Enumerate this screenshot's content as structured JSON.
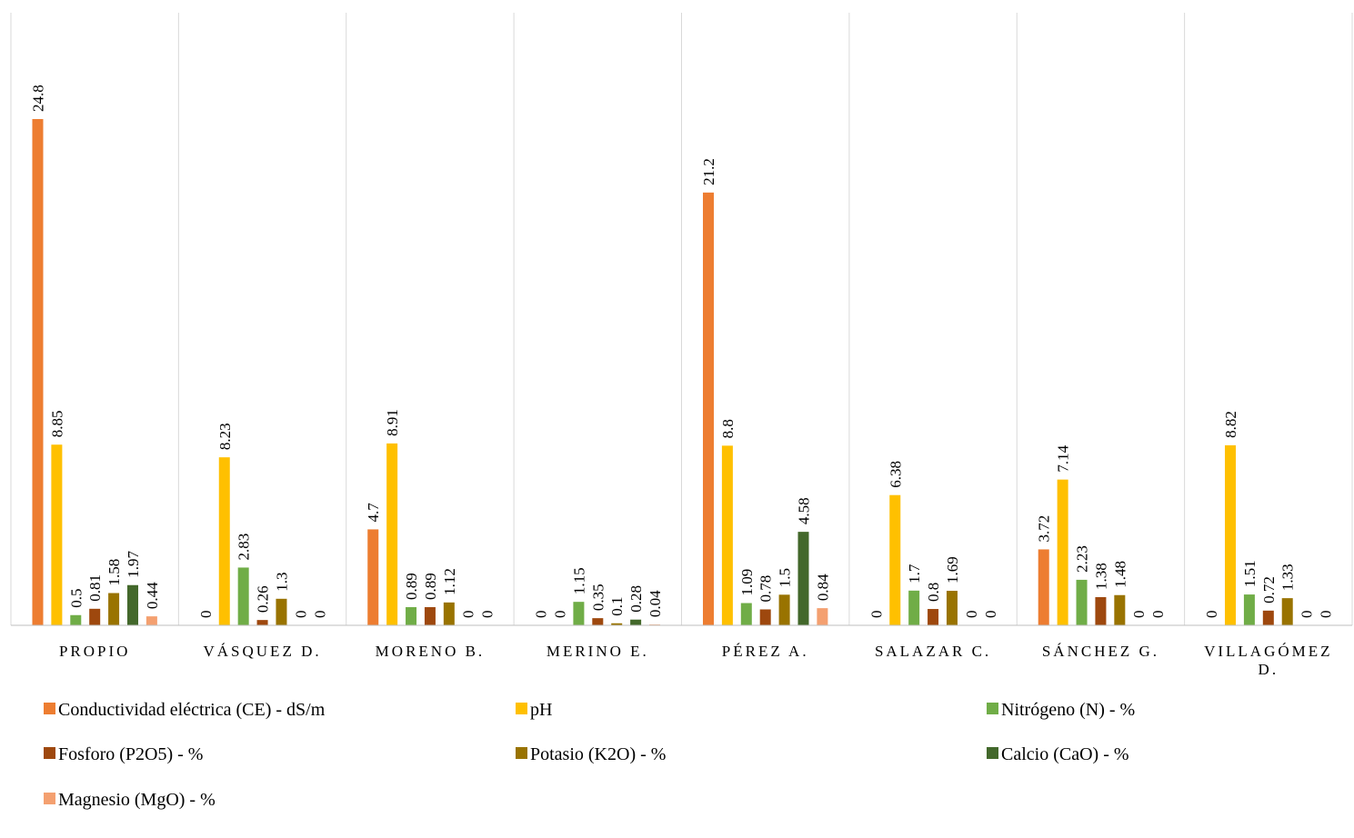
{
  "chart_data": {
    "type": "bar",
    "title": "",
    "xlabel": "",
    "ylabel": "",
    "ylim": [
      0,
      27
    ],
    "grid": false,
    "legend_position": "bottom",
    "categories": [
      [
        "PROPIO"
      ],
      [
        "VÁSQUEZ D."
      ],
      [
        "MORENO B."
      ],
      [
        "MERINO E."
      ],
      [
        "PÉREZ A."
      ],
      [
        "SALAZAR C."
      ],
      [
        "SÁNCHEZ G."
      ],
      [
        "VILLAGÓMEZ",
        "D."
      ]
    ],
    "series": [
      {
        "name": "Conductividad eléctrica (CE) - dS/m",
        "color": "#ED7D31",
        "values": [
          24.8,
          0,
          4.7,
          0,
          21.2,
          0,
          3.72,
          0
        ]
      },
      {
        "name": "pH",
        "color": "#FFC000",
        "values": [
          8.85,
          8.23,
          8.91,
          0,
          8.8,
          6.38,
          7.14,
          8.82
        ]
      },
      {
        "name": "Nitrógeno (N) - %",
        "color": "#70AD47",
        "values": [
          0.5,
          2.83,
          0.89,
          1.15,
          1.09,
          1.7,
          2.23,
          1.51
        ]
      },
      {
        "name": "Fosforo (P2O5) - %",
        "color": "#9E480E",
        "values": [
          0.81,
          0.26,
          0.89,
          0.35,
          0.78,
          0.8,
          1.38,
          0.72
        ]
      },
      {
        "name": "Potasio (K2O) - %",
        "color": "#997300",
        "values": [
          1.58,
          1.3,
          1.12,
          0.1,
          1.5,
          1.69,
          1.48,
          1.33
        ]
      },
      {
        "name": "Calcio (CaO) - %",
        "color": "#43682B",
        "values": [
          1.97,
          0,
          0,
          0.28,
          4.58,
          0,
          0,
          0
        ]
      },
      {
        "name": "Magnesio (MgO) - %",
        "color": "#F4A070",
        "values": [
          0.44,
          0,
          0,
          0.04,
          0.84,
          0,
          0,
          0
        ]
      }
    ]
  }
}
